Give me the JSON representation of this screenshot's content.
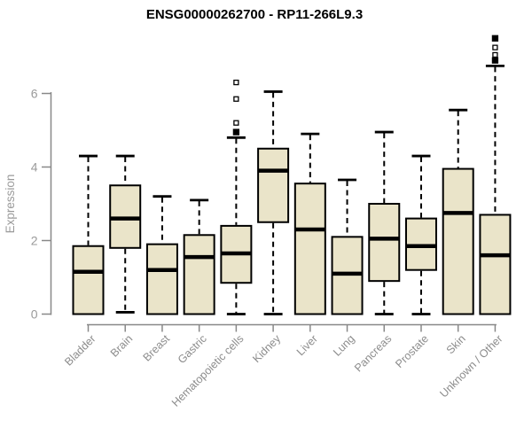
{
  "header": {
    "title": "ENSG00000262700 - RP11-266L9.3"
  },
  "chart_data": {
    "type": "boxplot",
    "title": "ENSG00000262700 - RP11-266L9.3",
    "xlabel": "",
    "ylabel": "Expression",
    "ylim": [
      0,
      7.6
    ],
    "yticks": [
      0,
      2,
      4,
      6
    ],
    "grid": false,
    "legend": "none",
    "categories": [
      "Bladder",
      "Brain",
      "Breast",
      "Gastric",
      "Hematopoietic cells",
      "Kidney",
      "Liver",
      "Lung",
      "Pancreas",
      "Prostate",
      "Skin",
      "Unknown / Other"
    ],
    "series": [
      {
        "category": "Bladder",
        "whisker_low": 0,
        "q1": 0,
        "median": 1.15,
        "q3": 1.85,
        "whisker_high": 4.3,
        "outliers": []
      },
      {
        "category": "Brain",
        "whisker_low": 0.05,
        "q1": 1.8,
        "median": 2.6,
        "q3": 3.5,
        "whisker_high": 4.3,
        "outliers": []
      },
      {
        "category": "Breast",
        "whisker_low": 0,
        "q1": 0,
        "median": 1.2,
        "q3": 1.9,
        "whisker_high": 3.2,
        "outliers": []
      },
      {
        "category": "Gastric",
        "whisker_low": 0,
        "q1": 0,
        "median": 1.55,
        "q3": 2.15,
        "whisker_high": 3.1,
        "outliers": []
      },
      {
        "category": "Hematopoietic cells",
        "whisker_low": 0,
        "q1": 0.85,
        "median": 1.65,
        "q3": 2.4,
        "whisker_high": 4.8,
        "outliers": [
          {
            "v": 4.95,
            "filled": true
          },
          {
            "v": 5.2,
            "filled": false
          },
          {
            "v": 5.85,
            "filled": false
          },
          {
            "v": 6.3,
            "filled": false
          }
        ]
      },
      {
        "category": "Kidney",
        "whisker_low": 0,
        "q1": 2.5,
        "median": 3.9,
        "q3": 4.5,
        "whisker_high": 6.05,
        "outliers": []
      },
      {
        "category": "Liver",
        "whisker_low": 0,
        "q1": 0,
        "median": 2.3,
        "q3": 3.55,
        "whisker_high": 4.9,
        "outliers": []
      },
      {
        "category": "Lung",
        "whisker_low": 0,
        "q1": 0,
        "median": 1.1,
        "q3": 2.1,
        "whisker_high": 3.65,
        "outliers": []
      },
      {
        "category": "Pancreas",
        "whisker_low": 0,
        "q1": 0.9,
        "median": 2.05,
        "q3": 3.0,
        "whisker_high": 4.95,
        "outliers": []
      },
      {
        "category": "Prostate",
        "whisker_low": 0,
        "q1": 1.2,
        "median": 1.85,
        "q3": 2.6,
        "whisker_high": 4.3,
        "outliers": []
      },
      {
        "category": "Skin",
        "whisker_low": 0,
        "q1": 0,
        "median": 2.75,
        "q3": 3.95,
        "whisker_high": 5.55,
        "outliers": []
      },
      {
        "category": "Unknown / Other",
        "whisker_low": 0,
        "q1": 0,
        "median": 1.6,
        "q3": 2.7,
        "whisker_high": 6.75,
        "outliers": [
          {
            "v": 6.9,
            "filled": true
          },
          {
            "v": 7.05,
            "filled": false
          },
          {
            "v": 7.25,
            "filled": false
          },
          {
            "v": 7.5,
            "filled": true
          }
        ]
      }
    ],
    "colors": {
      "box_fill": "#EAE4C9",
      "box_stroke": "#000000",
      "median": "#000000",
      "whisker": "#000000",
      "axis": "#888888",
      "y_tick_label": "#9A9A9A",
      "x_tick_label": "#8C8C8C",
      "axis_label": "#9A9A9A",
      "title": "#000000",
      "outlier_open_fill": "#FFFFFF",
      "background": "#FFFFFF"
    }
  }
}
